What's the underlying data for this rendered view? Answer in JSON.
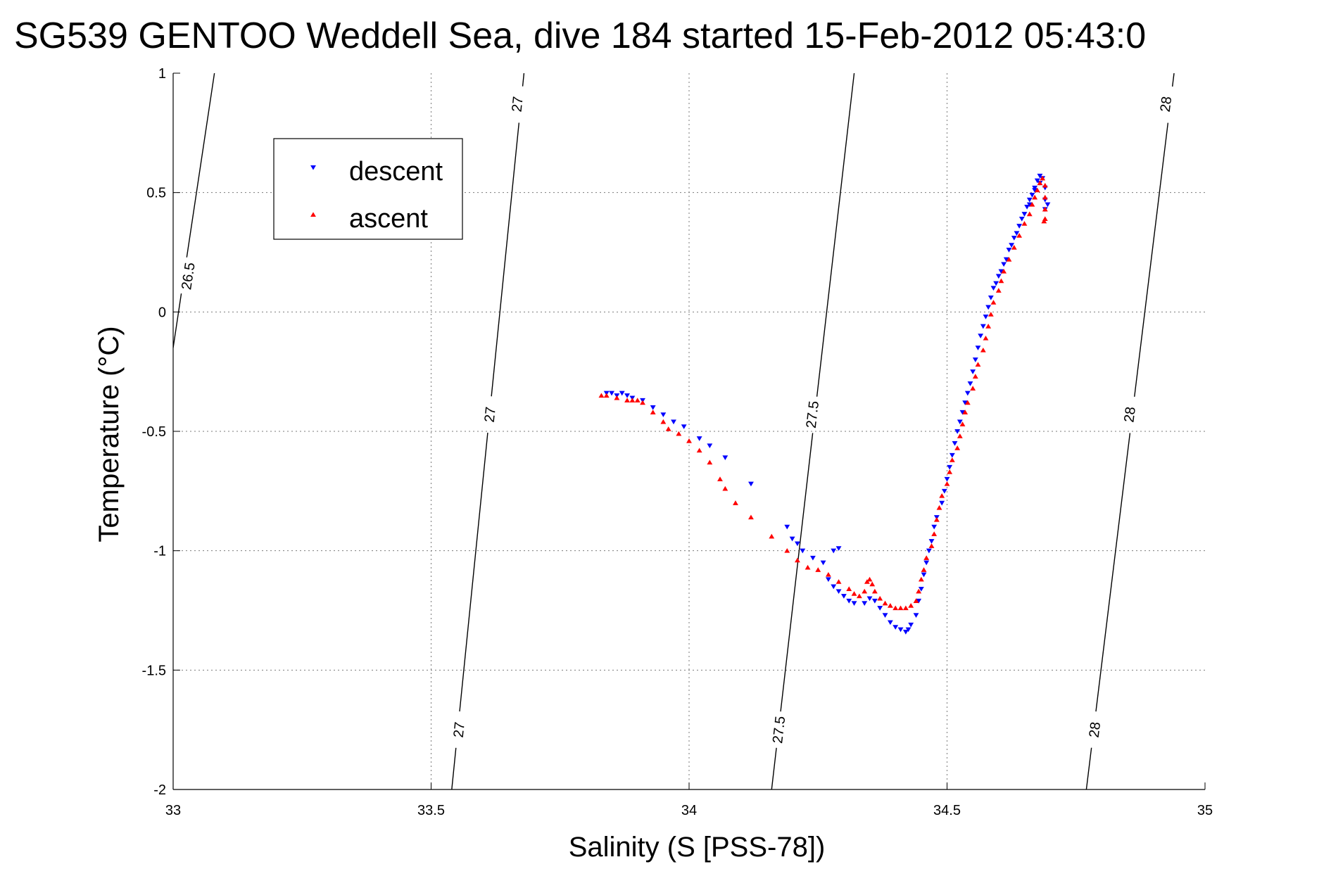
{
  "chart_data": {
    "type": "scatter",
    "title": "SG539 GENTOO Weddell Sea, dive 184 started 15-Feb-2012 05:43:0",
    "xlabel": "Salinity (S [PSS-78])",
    "ylabel": "Temperature (°C)",
    "xlim": [
      33,
      35
    ],
    "ylim": [
      -2,
      1
    ],
    "x_ticks": [
      33,
      33.5,
      34,
      34.5,
      35
    ],
    "x_tick_labels": [
      "33",
      "33.5",
      "34",
      "34.5",
      "35"
    ],
    "y_ticks": [
      -2,
      -1.5,
      -1,
      -0.5,
      0,
      0.5,
      1
    ],
    "y_tick_labels": [
      "-2",
      "-1.5",
      "-1",
      "-0.5",
      "0",
      "0.5",
      "1"
    ],
    "grid": true,
    "legend_position": "top-left",
    "series": [
      {
        "name": "descent",
        "marker": "triangle-down",
        "color": "#0000ff",
        "points": [
          [
            33.84,
            -0.34
          ],
          [
            33.85,
            -0.34
          ],
          [
            33.86,
            -0.35
          ],
          [
            33.87,
            -0.34
          ],
          [
            33.88,
            -0.35
          ],
          [
            33.89,
            -0.36
          ],
          [
            33.91,
            -0.37
          ],
          [
            33.93,
            -0.4
          ],
          [
            33.95,
            -0.43
          ],
          [
            33.97,
            -0.46
          ],
          [
            33.99,
            -0.48
          ],
          [
            34.02,
            -0.53
          ],
          [
            34.04,
            -0.56
          ],
          [
            34.07,
            -0.61
          ],
          [
            34.12,
            -0.72
          ],
          [
            34.19,
            -0.9
          ],
          [
            34.2,
            -0.95
          ],
          [
            34.21,
            -0.97
          ],
          [
            34.22,
            -1.0
          ],
          [
            34.24,
            -1.03
          ],
          [
            34.26,
            -1.05
          ],
          [
            34.28,
            -1.0
          ],
          [
            34.29,
            -0.99
          ],
          [
            34.27,
            -1.12
          ],
          [
            34.28,
            -1.15
          ],
          [
            34.29,
            -1.17
          ],
          [
            34.3,
            -1.19
          ],
          [
            34.31,
            -1.21
          ],
          [
            34.32,
            -1.22
          ],
          [
            34.34,
            -1.22
          ],
          [
            34.35,
            -1.2
          ],
          [
            34.36,
            -1.21
          ],
          [
            34.37,
            -1.24
          ],
          [
            34.38,
            -1.27
          ],
          [
            34.39,
            -1.3
          ],
          [
            34.4,
            -1.32
          ],
          [
            34.41,
            -1.33
          ],
          [
            34.42,
            -1.34
          ],
          [
            34.425,
            -1.33
          ],
          [
            34.43,
            -1.31
          ],
          [
            34.44,
            -1.27
          ],
          [
            34.445,
            -1.21
          ],
          [
            34.45,
            -1.16
          ],
          [
            34.455,
            -1.1
          ],
          [
            34.46,
            -1.05
          ],
          [
            34.465,
            -1.0
          ],
          [
            34.47,
            -0.96
          ],
          [
            34.475,
            -0.9
          ],
          [
            34.48,
            -0.86
          ],
          [
            34.49,
            -0.8
          ],
          [
            34.495,
            -0.75
          ],
          [
            34.5,
            -0.7
          ],
          [
            34.505,
            -0.65
          ],
          [
            34.51,
            -0.6
          ],
          [
            34.515,
            -0.55
          ],
          [
            34.52,
            -0.5
          ],
          [
            34.525,
            -0.46
          ],
          [
            34.53,
            -0.42
          ],
          [
            34.535,
            -0.38
          ],
          [
            34.54,
            -0.34
          ],
          [
            34.545,
            -0.3
          ],
          [
            34.55,
            -0.25
          ],
          [
            34.555,
            -0.2
          ],
          [
            34.56,
            -0.15
          ],
          [
            34.565,
            -0.1
          ],
          [
            34.57,
            -0.06
          ],
          [
            34.575,
            -0.02
          ],
          [
            34.58,
            0.02
          ],
          [
            34.585,
            0.06
          ],
          [
            34.59,
            0.1
          ],
          [
            34.6,
            0.15
          ],
          [
            34.61,
            0.2
          ],
          [
            34.62,
            0.26
          ],
          [
            34.63,
            0.31
          ],
          [
            34.64,
            0.36
          ],
          [
            34.65,
            0.41
          ],
          [
            34.66,
            0.45
          ],
          [
            34.665,
            0.49
          ],
          [
            34.67,
            0.52
          ],
          [
            34.675,
            0.55
          ],
          [
            34.68,
            0.57
          ],
          [
            34.685,
            0.56
          ],
          [
            34.69,
            0.52
          ],
          [
            34.69,
            0.47
          ],
          [
            34.69,
            0.43
          ],
          [
            34.695,
            0.45
          ],
          [
            34.68,
            0.54
          ],
          [
            34.67,
            0.51
          ],
          [
            34.66,
            0.47
          ],
          [
            34.655,
            0.44
          ],
          [
            34.645,
            0.39
          ],
          [
            34.635,
            0.33
          ],
          [
            34.625,
            0.28
          ],
          [
            34.615,
            0.22
          ],
          [
            34.605,
            0.17
          ],
          [
            34.595,
            0.12
          ]
        ]
      },
      {
        "name": "ascent",
        "marker": "triangle-up",
        "color": "#ff0000",
        "points": [
          [
            33.83,
            -0.35
          ],
          [
            33.84,
            -0.35
          ],
          [
            33.86,
            -0.36
          ],
          [
            33.88,
            -0.37
          ],
          [
            33.89,
            -0.37
          ],
          [
            33.9,
            -0.37
          ],
          [
            33.91,
            -0.38
          ],
          [
            33.93,
            -0.42
          ],
          [
            33.95,
            -0.46
          ],
          [
            33.96,
            -0.49
          ],
          [
            33.98,
            -0.51
          ],
          [
            34.0,
            -0.54
          ],
          [
            34.02,
            -0.58
          ],
          [
            34.04,
            -0.63
          ],
          [
            34.06,
            -0.7
          ],
          [
            34.07,
            -0.74
          ],
          [
            34.09,
            -0.8
          ],
          [
            34.12,
            -0.86
          ],
          [
            34.16,
            -0.94
          ],
          [
            34.19,
            -1.0
          ],
          [
            34.21,
            -1.04
          ],
          [
            34.23,
            -1.07
          ],
          [
            34.25,
            -1.08
          ],
          [
            34.27,
            -1.1
          ],
          [
            34.29,
            -1.13
          ],
          [
            34.31,
            -1.16
          ],
          [
            34.32,
            -1.18
          ],
          [
            34.33,
            -1.19
          ],
          [
            34.34,
            -1.17
          ],
          [
            34.345,
            -1.13
          ],
          [
            34.35,
            -1.12
          ],
          [
            34.355,
            -1.14
          ],
          [
            34.36,
            -1.17
          ],
          [
            34.37,
            -1.2
          ],
          [
            34.38,
            -1.22
          ],
          [
            34.39,
            -1.23
          ],
          [
            34.4,
            -1.24
          ],
          [
            34.41,
            -1.24
          ],
          [
            34.42,
            -1.24
          ],
          [
            34.43,
            -1.23
          ],
          [
            34.44,
            -1.21
          ],
          [
            34.445,
            -1.17
          ],
          [
            34.45,
            -1.12
          ],
          [
            34.455,
            -1.08
          ],
          [
            34.46,
            -1.03
          ],
          [
            34.47,
            -0.98
          ],
          [
            34.475,
            -0.93
          ],
          [
            34.48,
            -0.87
          ],
          [
            34.485,
            -0.82
          ],
          [
            34.49,
            -0.77
          ],
          [
            34.5,
            -0.72
          ],
          [
            34.505,
            -0.67
          ],
          [
            34.51,
            -0.62
          ],
          [
            34.52,
            -0.57
          ],
          [
            34.525,
            -0.52
          ],
          [
            34.53,
            -0.47
          ],
          [
            34.535,
            -0.42
          ],
          [
            34.54,
            -0.38
          ],
          [
            34.55,
            -0.32
          ],
          [
            34.555,
            -0.27
          ],
          [
            34.56,
            -0.22
          ],
          [
            34.57,
            -0.16
          ],
          [
            34.575,
            -0.11
          ],
          [
            34.58,
            -0.06
          ],
          [
            34.585,
            -0.01
          ],
          [
            34.59,
            0.04
          ],
          [
            34.6,
            0.09
          ],
          [
            34.605,
            0.13
          ],
          [
            34.61,
            0.17
          ],
          [
            34.62,
            0.22
          ],
          [
            34.63,
            0.27
          ],
          [
            34.64,
            0.32
          ],
          [
            34.65,
            0.37
          ],
          [
            34.66,
            0.41
          ],
          [
            34.665,
            0.45
          ],
          [
            34.67,
            0.48
          ],
          [
            34.675,
            0.51
          ],
          [
            34.68,
            0.54
          ],
          [
            34.685,
            0.56
          ],
          [
            34.69,
            0.53
          ],
          [
            34.69,
            0.48
          ],
          [
            34.69,
            0.43
          ],
          [
            34.69,
            0.39
          ],
          [
            34.688,
            0.38
          ]
        ]
      }
    ],
    "contours": [
      {
        "label": "26.5",
        "points": [
          [
            33.0,
            -0.15
          ],
          [
            33.08,
            1.0
          ]
        ],
        "labels": [
          [
            33.03,
            0.15,
            "26.5"
          ]
        ]
      },
      {
        "label": "27",
        "points": [
          [
            33.54,
            -2.0
          ],
          [
            33.68,
            1.0
          ]
        ],
        "labels": [
          [
            33.555,
            -1.75,
            "27"
          ],
          [
            33.615,
            -0.43,
            "27"
          ],
          [
            33.668,
            0.87,
            "27"
          ]
        ]
      },
      {
        "label": "27.5",
        "points": [
          [
            34.16,
            -2.0
          ],
          [
            34.32,
            1.0
          ]
        ],
        "labels": [
          [
            34.175,
            -1.75,
            "27.5"
          ],
          [
            34.24,
            -0.43,
            "27.5"
          ]
        ]
      },
      {
        "label": "28",
        "points": [
          [
            34.77,
            -2.0
          ],
          [
            34.94,
            1.0
          ]
        ],
        "labels": [
          [
            34.787,
            -1.75,
            "28"
          ],
          [
            34.855,
            -0.43,
            "28"
          ],
          [
            34.925,
            0.87,
            "28"
          ]
        ]
      }
    ]
  }
}
